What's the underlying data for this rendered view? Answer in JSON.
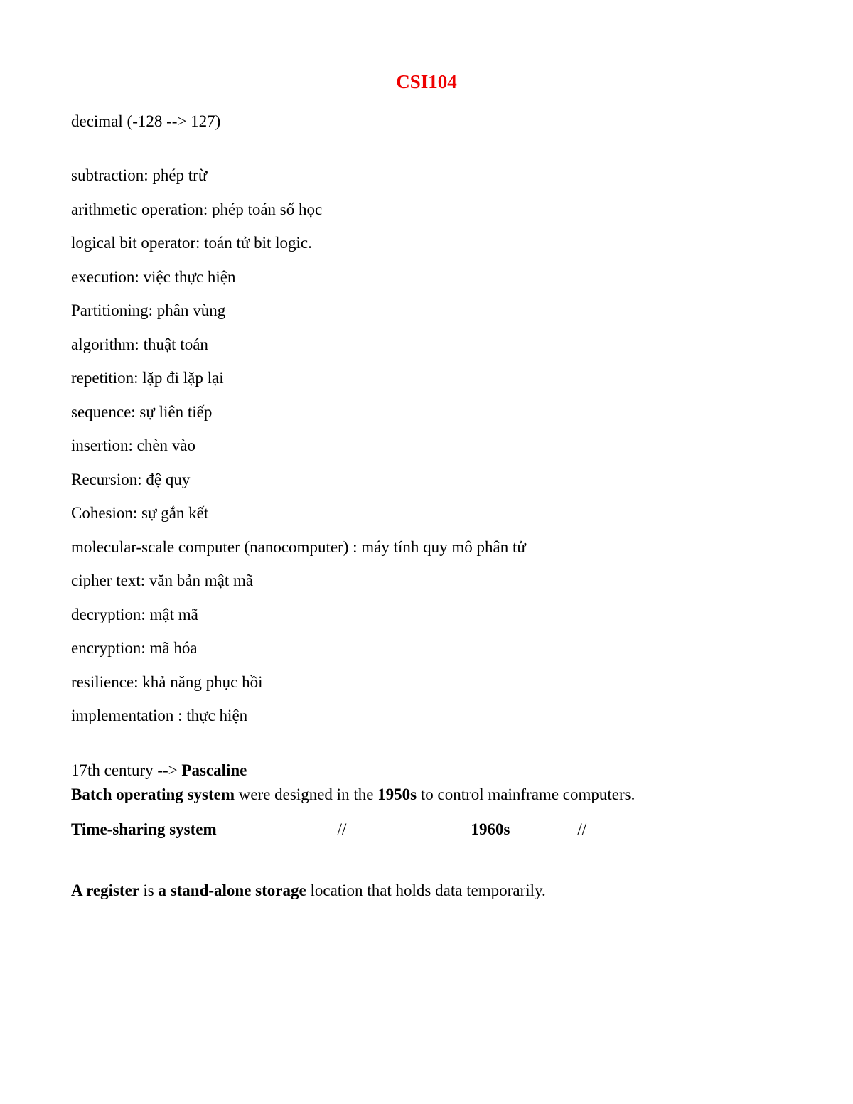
{
  "title": "CSI104",
  "first_line": "decimal (-128 --> 127)",
  "terms": [
    "subtraction: phép trừ",
    "arithmetic operation: phép toán số học",
    "logical bit operator: toán tử bit logic.",
    "execution: việc thực hiện",
    "Partitioning: phân vùng",
    "algorithm: thuật toán",
    "repetition: lặp đi lặp lại",
    "sequence: sự liên tiếp",
    "insertion: chèn vào",
    "Recursion: đệ quy",
    "Cohesion: sự gắn kết",
    "molecular-scale computer (nanocomputer) : máy tính quy mô phân tử",
    "cipher text: văn bản mật mã",
    "decryption: mật mã",
    "encryption: mã hóa",
    "resilience: khả năng phục hồi",
    "implementation : thực hiện"
  ],
  "century_line": {
    "prefix": "17th century --> ",
    "bold": "Pascaline"
  },
  "batch_line": {
    "b1": "Batch operating system",
    "t1": " were designed in the ",
    "b2": "1950s",
    "t2": " to control mainframe computers."
  },
  "time_sharing": {
    "label": "Time-sharing system",
    "slash1": "//",
    "year": "1960s",
    "slash2": "//"
  },
  "register_line": {
    "b1": "A register ",
    "t1": "is ",
    "b2": "a stand-alone storage ",
    "t2": "location that holds data temporarily."
  }
}
